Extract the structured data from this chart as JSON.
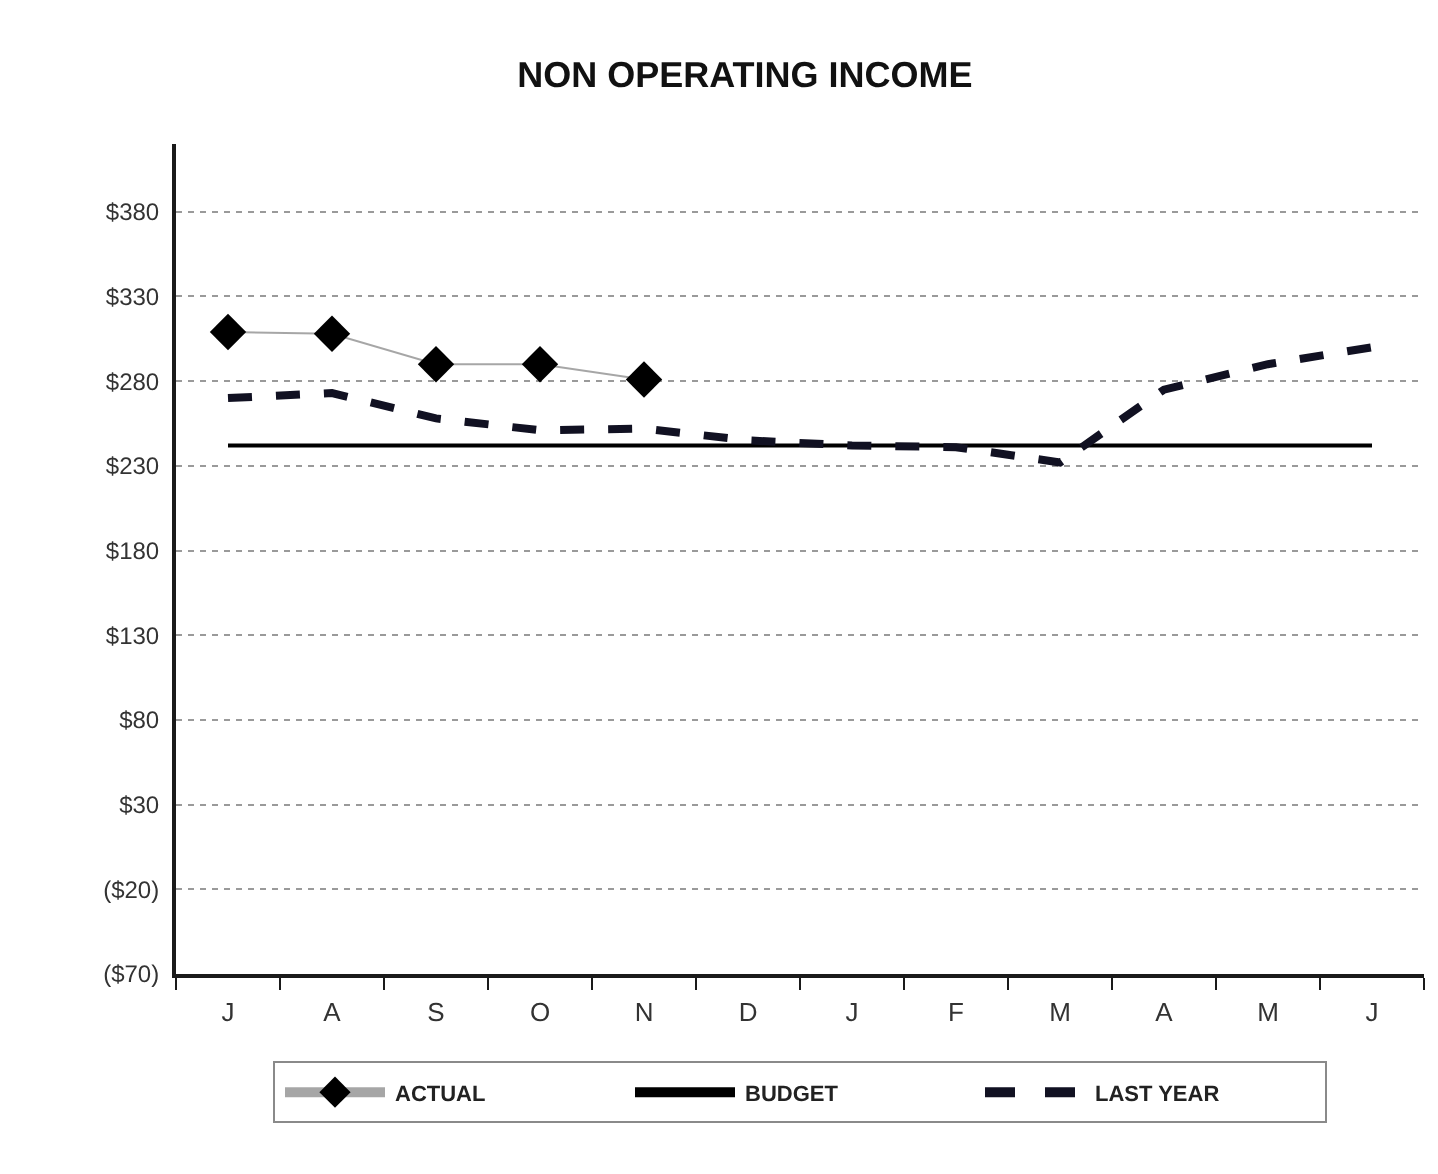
{
  "chart_data": {
    "type": "line",
    "title": "NON OPERATING INCOME",
    "categories": [
      "J",
      "A",
      "S",
      "O",
      "N",
      "D",
      "J",
      "F",
      "M",
      "A",
      "M",
      "J"
    ],
    "series": [
      {
        "name": "ACTUAL",
        "color": "#000000",
        "marker": "diamond",
        "line_style": "solid",
        "values": [
          309,
          308,
          290,
          290,
          281,
          null,
          null,
          null,
          null,
          null,
          null,
          null
        ]
      },
      {
        "name": "BUDGET",
        "color": "#000000",
        "marker": "none",
        "line_style": "solid",
        "values": [
          242,
          242,
          242,
          242,
          242,
          242,
          242,
          242,
          242,
          242,
          242,
          242
        ]
      },
      {
        "name": "LAST YEAR",
        "color": "#111122",
        "marker": "none",
        "line_style": "dashed",
        "values": [
          270,
          273,
          258,
          251,
          252,
          245,
          242,
          241,
          232,
          275,
          290,
          300
        ]
      }
    ],
    "ylim": [
      -70,
      420
    ],
    "yticks": [
      {
        "value": -70,
        "label": "($70)"
      },
      {
        "value": -20,
        "label": "($20)"
      },
      {
        "value": 30,
        "label": "$30"
      },
      {
        "value": 80,
        "label": "$80"
      },
      {
        "value": 130,
        "label": "$130"
      },
      {
        "value": 180,
        "label": "$180"
      },
      {
        "value": 230,
        "label": "$230"
      },
      {
        "value": 280,
        "label": "$280"
      },
      {
        "value": 330,
        "label": "$330"
      },
      {
        "value": 380,
        "label": "$380"
      }
    ],
    "grid": "y",
    "legend": "bottom"
  }
}
